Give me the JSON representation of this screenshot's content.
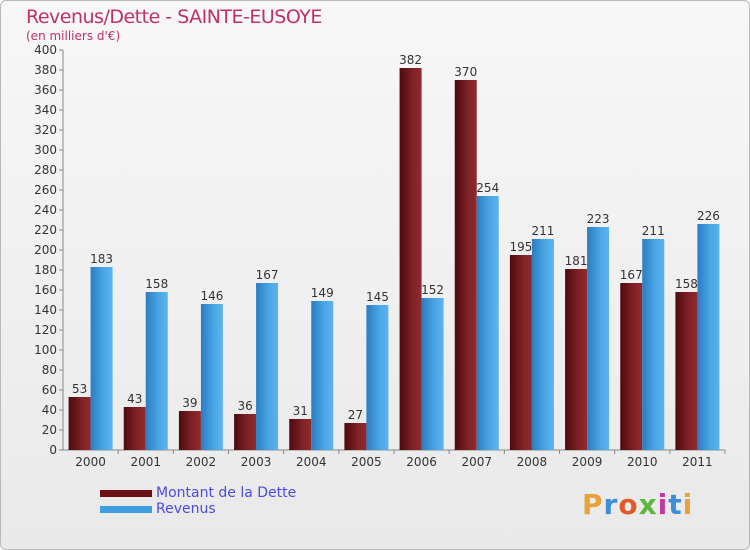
{
  "title": "Revenus/Dette - SAINTE-EUSOYE",
  "subtitle": "(en milliers d'€)",
  "chart_data": {
    "type": "bar",
    "categories": [
      "2000",
      "2001",
      "2002",
      "2003",
      "2004",
      "2005",
      "2006",
      "2007",
      "2008",
      "2009",
      "2010",
      "2011"
    ],
    "series": [
      {
        "name": "Montant de la Dette",
        "color": "#7a1e22",
        "values": [
          53,
          43,
          39,
          36,
          31,
          27,
          382,
          370,
          195,
          181,
          167,
          158
        ]
      },
      {
        "name": "Revenus",
        "color": "#3f9ee0",
        "values": [
          183,
          158,
          146,
          167,
          149,
          145,
          152,
          254,
          211,
          223,
          211,
          226
        ]
      }
    ],
    "ylim": [
      0,
      400
    ],
    "yticks": [
      0,
      20,
      40,
      60,
      80,
      100,
      120,
      140,
      160,
      180,
      200,
      220,
      240,
      260,
      280,
      300,
      320,
      340,
      360,
      380,
      400
    ],
    "grid": false,
    "legend_position": "bottom-left"
  },
  "legend": [
    {
      "label": "Montant de la Dette",
      "color": "#6b0f14"
    },
    {
      "label": "Revenus",
      "color": "#3f9ee0"
    }
  ],
  "logo": {
    "letters": [
      "P",
      "r",
      "o",
      "x",
      "i",
      "t",
      "i"
    ],
    "colors": [
      "#e8a23a",
      "#3a8fd8",
      "#e05a2a",
      "#5cb83a",
      "#c03aa0",
      "#3a8fd8",
      "#e8a23a"
    ]
  }
}
